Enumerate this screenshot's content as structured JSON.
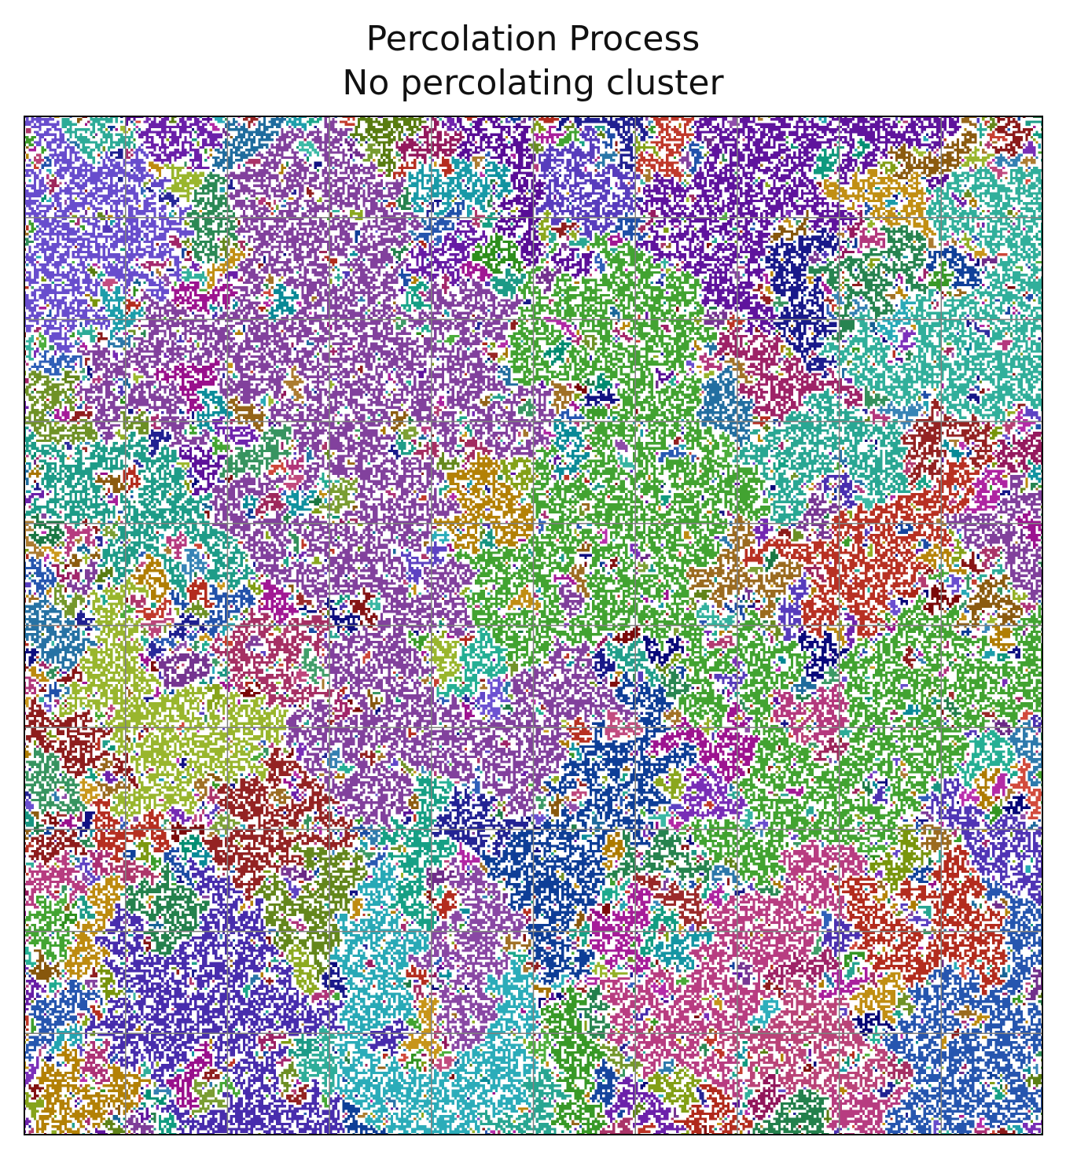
{
  "chart_data": {
    "type": "heatmap",
    "title": "Percolation Process",
    "subtitle": "No percolating cluster",
    "xlabel": "",
    "ylabel": "",
    "grid": true,
    "grid_divisions": 10,
    "legend": "none",
    "ticks": "none",
    "lattice_cells": 400,
    "colors": {
      "empty_site": "#ffffff",
      "grid_line": "#808080",
      "frame": "#000000",
      "cluster_palette": [
        "#8b1a1a",
        "#a52a6e",
        "#1f4fa8",
        "#2e8b57",
        "#6a1fa8",
        "#b8860b",
        "#1a9ba8",
        "#3fa02e",
        "#a81f9b",
        "#9a6a1f",
        "#1a1a8b",
        "#2aa894",
        "#8ba81f",
        "#c0392b",
        "#5a3fbf",
        "#16a085",
        "#7d3c98",
        "#2874a6",
        "#b03a6e",
        "#6b8e23"
      ]
    }
  }
}
